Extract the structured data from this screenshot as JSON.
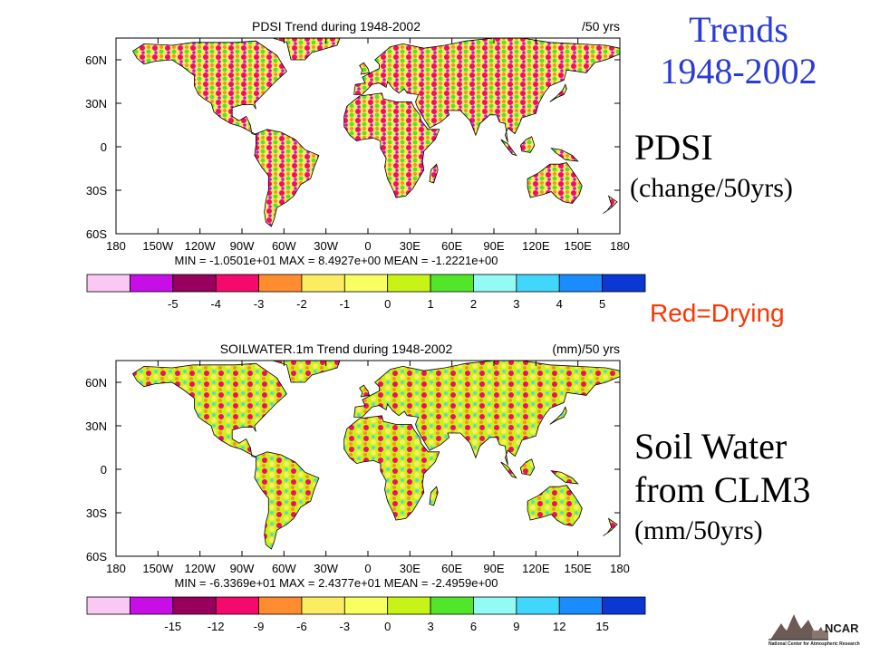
{
  "slide": {
    "title_line1": "Trends",
    "title_line2": "1948-2002",
    "pdsi_label": "PDSI",
    "pdsi_units": "(change/50yrs)",
    "red_note": "Red=Drying",
    "soil_line1": "Soil Water",
    "soil_line2": "from CLM3",
    "soil_units": "(mm/50yrs)"
  },
  "logo": {
    "name": "NCAR",
    "caption": "National Center for Atmospheric Research"
  },
  "colors": {
    "title_blue": "#2a3bd6",
    "red_note": "#ff3300",
    "scale": [
      "#f9c8f3",
      "#c80ee6",
      "#97005c",
      "#f30a6c",
      "#ff8c2e",
      "#fcec61",
      "#f8ff60",
      "#c7f317",
      "#52e62a",
      "#94fbf4",
      "#41d6fc",
      "#1a8cfe",
      "#0b38d4"
    ]
  },
  "chart_data": [
    {
      "type": "heatmap",
      "title": "PDSI Trend during 1948-2002",
      "units": "/50 yrs",
      "x_ticks": [
        "180",
        "150W",
        "120W",
        "90W",
        "60W",
        "30W",
        "0",
        "30E",
        "60E",
        "90E",
        "120E",
        "150E",
        "180"
      ],
      "y_ticks": [
        "60N",
        "30N",
        "0",
        "30S",
        "60S"
      ],
      "xlim": [
        -180,
        180
      ],
      "ylim": [
        -60,
        75
      ],
      "stats": "MIN = -1.0501e+01   MAX = 8.4927e+00   MEAN = -1.2221e+00",
      "min": -10.501,
      "max": 8.4927,
      "mean": -1.2221,
      "colorbar_labels": [
        "-5",
        "-4",
        "-3",
        "-2",
        "-1",
        "0",
        "1",
        "2",
        "3",
        "4",
        "5"
      ]
    },
    {
      "type": "heatmap",
      "title": "SOILWATER.1m Trend during 1948-2002",
      "units": "(mm)/50 yrs",
      "x_ticks": [
        "180",
        "150W",
        "120W",
        "90W",
        "60W",
        "30W",
        "0",
        "30E",
        "60E",
        "90E",
        "120E",
        "150E",
        "180"
      ],
      "y_ticks": [
        "60N",
        "30N",
        "0",
        "30S",
        "60S"
      ],
      "xlim": [
        -180,
        180
      ],
      "ylim": [
        -60,
        75
      ],
      "stats": "MIN = -6.3369e+01   MAX = 2.4377e+01   MEAN = -2.4959e+00",
      "min": -63.369,
      "max": 24.377,
      "mean": -2.4959,
      "colorbar_labels": [
        "-15",
        "-12",
        "-9",
        "-6",
        "-3",
        "0",
        "3",
        "6",
        "9",
        "12",
        "15"
      ]
    }
  ]
}
